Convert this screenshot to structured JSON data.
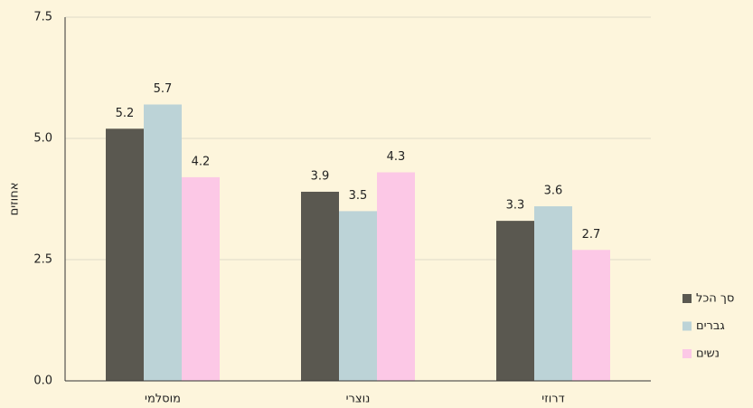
{
  "chart_data": {
    "type": "bar",
    "ylabel": "אחוזים",
    "categories": [
      "מוסלמי",
      "נוצרי",
      "דרוזי"
    ],
    "series": [
      {
        "name": "סך הכל",
        "color": "#5a5850",
        "values": [
          5.2,
          3.9,
          3.3
        ]
      },
      {
        "name": "גברים",
        "color": "#bcd3d7",
        "values": [
          5.7,
          3.5,
          3.6
        ]
      },
      {
        "name": "נשים",
        "color": "#fcc8e6",
        "values": [
          4.2,
          4.3,
          2.7
        ]
      }
    ],
    "ylim": [
      0,
      7.5
    ],
    "yticks": [
      {
        "value": 0,
        "label": "0.0"
      },
      2.5,
      {
        "value": 5,
        "label": "5.0"
      },
      7.5
    ],
    "grid": true,
    "legend": "right"
  }
}
